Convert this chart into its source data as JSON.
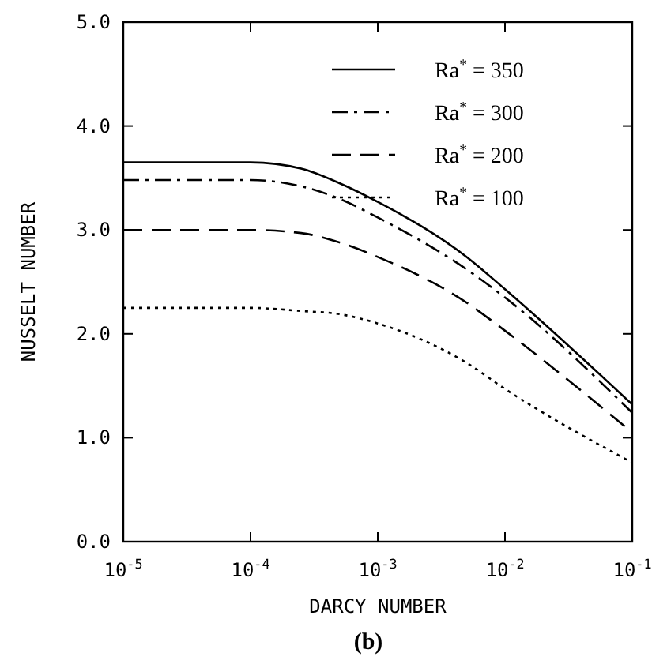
{
  "chart_data": {
    "type": "line",
    "xlabel": "DARCY NUMBER",
    "ylabel": "NUSSELT NUMBER",
    "log": "x",
    "xlim": [
      1e-05,
      0.1
    ],
    "ylim": [
      0,
      5
    ],
    "xticks": [
      {
        "value": 1e-05,
        "label": "10$^{-5}$"
      },
      {
        "value": 0.0001,
        "label": "10$^{-4}$"
      },
      {
        "value": 0.001,
        "label": "10$^{-3}$"
      },
      {
        "value": 0.01,
        "label": "10$^{-2}$"
      },
      {
        "value": 0.1,
        "label": "10$^{-1}$"
      }
    ],
    "yticks": [
      {
        "value": 0,
        "label": "0.0"
      },
      {
        "value": 1,
        "label": "1.0"
      },
      {
        "value": 2,
        "label": "2.0"
      },
      {
        "value": 3,
        "label": "3.0"
      },
      {
        "value": 4,
        "label": "4.0"
      },
      {
        "value": 5,
        "label": "5.0"
      }
    ],
    "x": [
      1e-05,
      0.0001,
      0.00025,
      0.0005,
      0.001,
      0.005,
      0.01,
      0.1
    ],
    "series": [
      {
        "name": "Ra$^{*}$ = 350",
        "color": "#000000",
        "line_style": "solid",
        "values": [
          3.65,
          3.65,
          3.59,
          3.45,
          3.27,
          2.74,
          2.43,
          1.32
        ]
      },
      {
        "name": "Ra$^{*}$ = 300",
        "color": "#000000",
        "line_style": "dashdot",
        "values": [
          3.48,
          3.48,
          3.42,
          3.3,
          3.12,
          2.62,
          2.35,
          1.24
        ]
      },
      {
        "name": "Ra$^{*}$ = 200",
        "color": "#000000",
        "line_style": "dashed",
        "values": [
          3.0,
          3.0,
          2.97,
          2.88,
          2.74,
          2.3,
          2.03,
          1.05
        ]
      },
      {
        "name": "Ra$^{*}$ = 100",
        "color": "#000000",
        "line_style": "dotted",
        "values": [
          2.25,
          2.25,
          2.22,
          2.19,
          2.1,
          1.72,
          1.47,
          0.76
        ]
      }
    ],
    "legend": "top right",
    "grid": false,
    "annotations": [
      "(b)"
    ]
  }
}
